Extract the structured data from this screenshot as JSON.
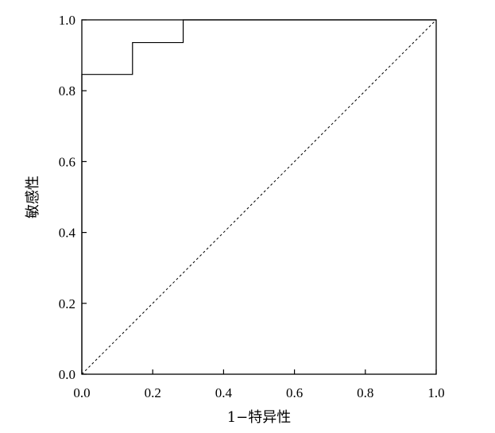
{
  "chart_data": {
    "type": "line",
    "title": "",
    "xlabel": "1−特异性",
    "ylabel": "敏感性",
    "xlim": [
      0,
      1
    ],
    "ylim": [
      0,
      1
    ],
    "x_ticks": [
      0.0,
      0.2,
      0.4,
      0.6,
      0.8,
      1.0
    ],
    "y_ticks": [
      0.0,
      0.2,
      0.4,
      0.6,
      0.8,
      1.0
    ],
    "x_tick_labels": [
      "0.0",
      "0.2",
      "0.4",
      "0.6",
      "0.8",
      "1.0"
    ],
    "y_tick_labels": [
      "0.0",
      "0.2",
      "0.4",
      "0.6",
      "0.8",
      "1.0"
    ],
    "grid": false,
    "legend": "none",
    "series": [
      {
        "style": "solid-step",
        "color": "#000000",
        "x": [
          0.0,
          0.0,
          0.143,
          0.143,
          0.286,
          0.286,
          1.0
        ],
        "y": [
          0.0,
          0.846,
          0.846,
          0.936,
          0.936,
          1.0,
          1.0
        ]
      },
      {
        "style": "dashed-diagonal",
        "color": "#000000",
        "x": [
          0.0,
          1.0
        ],
        "y": [
          0.0,
          1.0
        ]
      }
    ]
  }
}
